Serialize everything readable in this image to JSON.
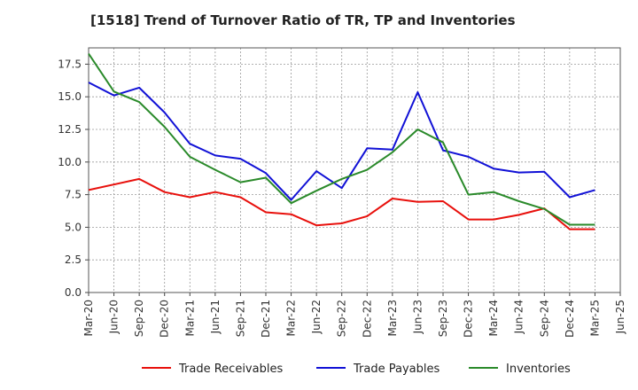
{
  "chart_data": {
    "type": "line",
    "title": "[1518]  Trend of Turnover Ratio of TR, TP and Inventories",
    "xlabel": "",
    "ylabel": "",
    "ylim": [
      0,
      18.75
    ],
    "yticks": [
      0.0,
      2.5,
      5.0,
      7.5,
      10.0,
      12.5,
      15.0,
      17.5
    ],
    "ytick_labels": [
      "0.0",
      "2.5",
      "5.0",
      "7.5",
      "10.0",
      "12.5",
      "15.0",
      "17.5"
    ],
    "x_tick_labels": [
      "Mar-20",
      "Jun-20",
      "Sep-20",
      "Dec-20",
      "Mar-21",
      "Jun-21",
      "Sep-21",
      "Dec-21",
      "Mar-22",
      "Jun-22",
      "Sep-22",
      "Dec-22",
      "Mar-23",
      "Jun-23",
      "Sep-23",
      "Dec-23",
      "Mar-24",
      "Jun-24",
      "Sep-24",
      "Dec-24",
      "Mar-25",
      "Jun-25"
    ],
    "x_months_total": 63,
    "grid": true,
    "legend_position": "bottom",
    "series": [
      {
        "name": "Trade Receivables",
        "color": "#e8100c",
        "points": [
          [
            0,
            7.85
          ],
          [
            6,
            8.7
          ],
          [
            9,
            7.7
          ],
          [
            12,
            7.3
          ],
          [
            15,
            7.7
          ],
          [
            18,
            7.3
          ],
          [
            21,
            6.15
          ],
          [
            24,
            6.0
          ],
          [
            27,
            5.15
          ],
          [
            30,
            5.3
          ],
          [
            33,
            5.85
          ],
          [
            36,
            7.2
          ],
          [
            39,
            6.95
          ],
          [
            42,
            7.0
          ],
          [
            45,
            5.6
          ],
          [
            48,
            5.6
          ],
          [
            51,
            5.95
          ],
          [
            54,
            6.45
          ],
          [
            57,
            4.85
          ],
          [
            60,
            4.85
          ]
        ]
      },
      {
        "name": "Trade Payables",
        "color": "#1111d6",
        "points": [
          [
            0,
            16.1
          ],
          [
            3,
            15.1
          ],
          [
            6,
            15.7
          ],
          [
            9,
            13.8
          ],
          [
            12,
            11.4
          ],
          [
            15,
            10.5
          ],
          [
            18,
            10.25
          ],
          [
            21,
            9.15
          ],
          [
            24,
            7.1
          ],
          [
            27,
            9.3
          ],
          [
            30,
            8.0
          ],
          [
            33,
            11.05
          ],
          [
            36,
            10.95
          ],
          [
            39,
            15.35
          ],
          [
            42,
            10.9
          ],
          [
            45,
            10.4
          ],
          [
            48,
            9.5
          ],
          [
            51,
            9.2
          ],
          [
            54,
            9.25
          ],
          [
            57,
            7.3
          ],
          [
            60,
            7.85
          ]
        ]
      },
      {
        "name": "Inventories",
        "color": "#2a8a2a",
        "points": [
          [
            0,
            18.3
          ],
          [
            3,
            15.4
          ],
          [
            6,
            14.6
          ],
          [
            9,
            12.7
          ],
          [
            12,
            10.4
          ],
          [
            15,
            9.4
          ],
          [
            18,
            8.45
          ],
          [
            21,
            8.8
          ],
          [
            24,
            6.85
          ],
          [
            27,
            7.8
          ],
          [
            30,
            8.7
          ],
          [
            33,
            9.4
          ],
          [
            36,
            10.75
          ],
          [
            39,
            12.5
          ],
          [
            42,
            11.5
          ],
          [
            45,
            7.5
          ],
          [
            48,
            7.7
          ],
          [
            51,
            7.0
          ],
          [
            54,
            6.4
          ],
          [
            57,
            5.2
          ],
          [
            60,
            5.2
          ]
        ]
      }
    ]
  }
}
